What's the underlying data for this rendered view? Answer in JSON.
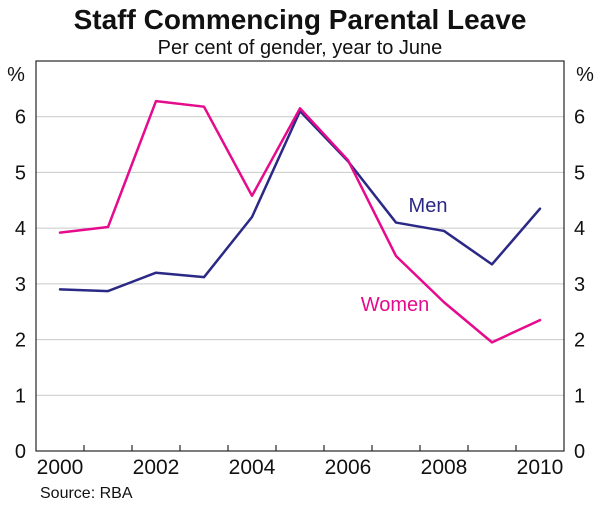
{
  "chart_data": {
    "type": "line",
    "title": "Staff Commencing Parental Leave",
    "subtitle": "Per cent of gender, year to June",
    "unit_label": "%",
    "x": [
      2000,
      2001,
      2002,
      2003,
      2004,
      2005,
      2006,
      2007,
      2008,
      2009,
      2010
    ],
    "x_tick_labels": [
      "2000",
      "2002",
      "2004",
      "2006",
      "2008",
      "2010"
    ],
    "y_ticks": [
      0,
      1,
      2,
      3,
      4,
      5,
      6
    ],
    "ylim": [
      0,
      7
    ],
    "grid": true,
    "grid_color": "#c9c9c9",
    "frame_color": "#262626",
    "text_color": "#111111",
    "legend_position": "inline-labels",
    "series": [
      {
        "name": "Men",
        "color": "#2b2985",
        "values": [
          2.9,
          2.87,
          3.2,
          3.12,
          4.2,
          6.1,
          5.2,
          4.1,
          3.95,
          3.35,
          4.35
        ]
      },
      {
        "name": "Women",
        "color": "#e60a8c",
        "values": [
          3.92,
          4.02,
          6.28,
          6.18,
          4.58,
          6.15,
          5.22,
          3.5,
          2.67,
          1.95,
          2.35
        ]
      }
    ],
    "source": "Source: RBA"
  }
}
